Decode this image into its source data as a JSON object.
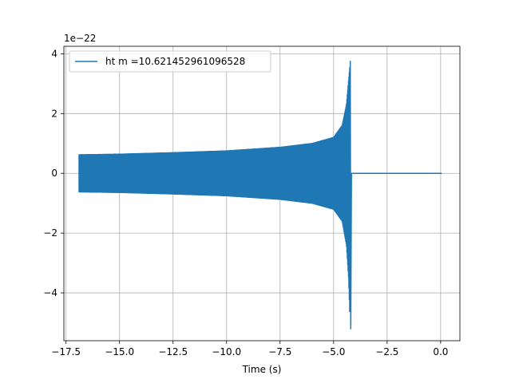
{
  "chart_data": {
    "type": "line",
    "title": "",
    "xlabel": "Time (s)",
    "ylabel": "",
    "y_scale_label": "1e−22",
    "xlim": [
      -17.6,
      0.9
    ],
    "ylim": [
      -5.6,
      4.25
    ],
    "grid": true,
    "legend_position": "top-left",
    "x_ticks": [
      -17.5,
      -15.0,
      -12.5,
      -10.0,
      -7.5,
      -5.0,
      -2.5,
      0.0
    ],
    "x_tick_labels": [
      "−17.5",
      "−15.0",
      "−12.5",
      "−10.0",
      "−7.5",
      "−5.0",
      "−2.5",
      "0.0"
    ],
    "y_ticks": [
      -4,
      -2,
      0,
      2,
      4
    ],
    "y_tick_labels": [
      "−4",
      "−2",
      "0",
      "2",
      "4"
    ],
    "series": [
      {
        "name": "ht m =10.621452961096528",
        "color": "#1f77b4",
        "t_start": -16.9,
        "t_merger": -4.22,
        "t_end": 0.05,
        "envelope_upper": [
          [
            -16.9,
            0.62
          ],
          [
            -15.0,
            0.64
          ],
          [
            -12.5,
            0.69
          ],
          [
            -10.0,
            0.75
          ],
          [
            -7.5,
            0.87
          ],
          [
            -6.0,
            1.0
          ],
          [
            -5.0,
            1.2
          ],
          [
            -4.6,
            1.6
          ],
          [
            -4.4,
            2.3
          ],
          [
            -4.3,
            3.1
          ],
          [
            -4.22,
            3.75
          ]
        ],
        "envelope_lower": [
          [
            -16.9,
            -0.62
          ],
          [
            -15.0,
            -0.64
          ],
          [
            -12.5,
            -0.69
          ],
          [
            -10.0,
            -0.75
          ],
          [
            -7.5,
            -0.87
          ],
          [
            -6.0,
            -1.0
          ],
          [
            -5.0,
            -1.2
          ],
          [
            -4.6,
            -1.6
          ],
          [
            -4.4,
            -2.4
          ],
          [
            -4.3,
            -3.5
          ],
          [
            -4.22,
            -5.2
          ]
        ],
        "post_merger_value": 0.0
      }
    ]
  }
}
